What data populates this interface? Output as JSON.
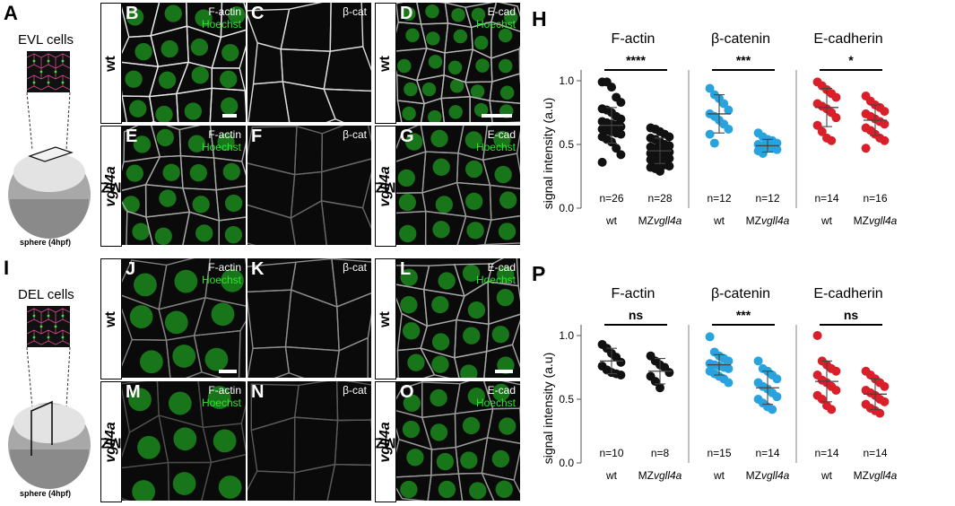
{
  "schematics": [
    {
      "letter": "A",
      "title": "EVL cells",
      "caption": "sphere (4hpf)"
    },
    {
      "letter": "I",
      "title": "DEL cells",
      "caption": "sphere (4hpf)"
    }
  ],
  "row_labels": {
    "wt": "wt",
    "mutant_prefix": "MZ",
    "mutant_gene": "vgll4a"
  },
  "image_panels": [
    {
      "letter": "B",
      "ch1": "F-actin",
      "ch2": "Hoechst"
    },
    {
      "letter": "C",
      "ch1": "β-cat",
      "ch2": ""
    },
    {
      "letter": "D",
      "ch1": "E-cad",
      "ch2": "Hoechst"
    },
    {
      "letter": "E",
      "ch1": "F-actin",
      "ch2": "Hoechst"
    },
    {
      "letter": "F",
      "ch1": "β-cat",
      "ch2": ""
    },
    {
      "letter": "G",
      "ch1": "E-cad",
      "ch2": "Hoechst"
    },
    {
      "letter": "J",
      "ch1": "F-actin",
      "ch2": "Hoechst"
    },
    {
      "letter": "K",
      "ch1": "β-cat",
      "ch2": ""
    },
    {
      "letter": "L",
      "ch1": "E-cad",
      "ch2": "Hoechst"
    },
    {
      "letter": "M",
      "ch1": "F-actin",
      "ch2": "Hoechst"
    },
    {
      "letter": "N",
      "ch1": "β-cat",
      "ch2": ""
    },
    {
      "letter": "O",
      "ch1": "E-cad",
      "ch2": "Hoechst"
    }
  ],
  "colors": {
    "black_series": "#111111",
    "blue_series": "#29a3dd",
    "red_series": "#d9202a",
    "nuclei": "#1f9a1f"
  },
  "chart_data": [
    {
      "panel": "H",
      "type": "scatter",
      "ylabel": "signal intensity (a.u)",
      "ylim": [
        0,
        1.0
      ],
      "yticks": [
        "0.0",
        "0.5",
        "1.0"
      ],
      "groups": [
        {
          "title": "F-actin",
          "significance": "****",
          "color": "black",
          "conditions": [
            {
              "label": "wt",
              "n": "n=26",
              "mean": 0.65,
              "sd": 0.14,
              "values": [
                0.99,
                0.99,
                0.95,
                0.87,
                0.83,
                0.78,
                0.77,
                0.75,
                0.72,
                0.7,
                0.68,
                0.67,
                0.66,
                0.65,
                0.64,
                0.62,
                0.61,
                0.6,
                0.59,
                0.58,
                0.56,
                0.54,
                0.52,
                0.47,
                0.42,
                0.36
              ]
            },
            {
              "label": "MZvgll4a",
              "n": "n=28",
              "mean": 0.45,
              "sd": 0.1,
              "values": [
                0.63,
                0.62,
                0.6,
                0.58,
                0.56,
                0.55,
                0.54,
                0.52,
                0.5,
                0.49,
                0.48,
                0.47,
                0.46,
                0.45,
                0.44,
                0.43,
                0.42,
                0.41,
                0.4,
                0.39,
                0.38,
                0.37,
                0.35,
                0.34,
                0.33,
                0.32,
                0.31,
                0.29
              ]
            }
          ]
        },
        {
          "title": "β-catenin",
          "significance": "***",
          "color": "blue",
          "conditions": [
            {
              "label": "wt",
              "n": "n=12",
              "mean": 0.74,
              "sd": 0.15,
              "values": [
                0.94,
                0.89,
                0.86,
                0.82,
                0.77,
                0.74,
                0.72,
                0.69,
                0.66,
                0.62,
                0.58,
                0.51
              ]
            },
            {
              "label": "MZvgll4a",
              "n": "n=12",
              "mean": 0.49,
              "sd": 0.05,
              "values": [
                0.59,
                0.56,
                0.54,
                0.53,
                0.51,
                0.5,
                0.49,
                0.48,
                0.47,
                0.46,
                0.45,
                0.43
              ]
            }
          ]
        },
        {
          "title": "E-cadherin",
          "significance": "*",
          "color": "red",
          "conditions": [
            {
              "label": "wt",
              "n": "n=14",
              "mean": 0.79,
              "sd": 0.15,
              "values": [
                0.99,
                0.96,
                0.93,
                0.9,
                0.87,
                0.82,
                0.8,
                0.78,
                0.75,
                0.71,
                0.65,
                0.6,
                0.55,
                0.53
              ]
            },
            {
              "label": "MZvgll4a",
              "n": "n=16",
              "mean": 0.69,
              "sd": 0.12,
              "values": [
                0.88,
                0.84,
                0.81,
                0.79,
                0.76,
                0.74,
                0.72,
                0.7,
                0.68,
                0.66,
                0.63,
                0.61,
                0.58,
                0.55,
                0.53,
                0.47
              ]
            }
          ]
        }
      ]
    },
    {
      "panel": "P",
      "type": "scatter",
      "ylabel": "signal intensity (a.u)",
      "ylim": [
        0,
        1.0
      ],
      "yticks": [
        "0.0",
        "0.5",
        "1.0"
      ],
      "groups": [
        {
          "title": "F-actin",
          "significance": "ns",
          "color": "black",
          "conditions": [
            {
              "label": "wt",
              "n": "n=10",
              "mean": 0.8,
              "sd": 0.1,
              "values": [
                0.93,
                0.9,
                0.86,
                0.83,
                0.79,
                0.76,
                0.73,
                0.71,
                0.7,
                0.69
              ]
            },
            {
              "label": "MZvgll4a",
              "n": "n=8",
              "mean": 0.72,
              "sd": 0.1,
              "values": [
                0.84,
                0.8,
                0.77,
                0.75,
                0.71,
                0.68,
                0.64,
                0.59
              ]
            }
          ]
        },
        {
          "title": "β-catenin",
          "significance": "***",
          "color": "blue",
          "conditions": [
            {
              "label": "wt",
              "n": "n=15",
              "mean": 0.77,
              "sd": 0.08,
              "values": [
                0.99,
                0.87,
                0.84,
                0.82,
                0.8,
                0.78,
                0.77,
                0.76,
                0.75,
                0.74,
                0.72,
                0.7,
                0.68,
                0.66,
                0.63
              ]
            },
            {
              "label": "MZvgll4a",
              "n": "n=14",
              "mean": 0.59,
              "sd": 0.13,
              "values": [
                0.8,
                0.74,
                0.72,
                0.69,
                0.66,
                0.63,
                0.6,
                0.58,
                0.55,
                0.52,
                0.5,
                0.47,
                0.44,
                0.42
              ]
            }
          ]
        },
        {
          "title": "E-cadherin",
          "significance": "ns",
          "color": "red",
          "conditions": [
            {
              "label": "wt",
              "n": "n=14",
              "mean": 0.64,
              "sd": 0.16,
              "values": [
                1.0,
                0.8,
                0.77,
                0.74,
                0.72,
                0.69,
                0.65,
                0.63,
                0.6,
                0.57,
                0.53,
                0.5,
                0.45,
                0.42
              ]
            },
            {
              "label": "MZvgll4a",
              "n": "n=14",
              "mean": 0.54,
              "sd": 0.12,
              "values": [
                0.72,
                0.69,
                0.66,
                0.63,
                0.6,
                0.57,
                0.55,
                0.53,
                0.5,
                0.48,
                0.46,
                0.43,
                0.41,
                0.39
              ]
            }
          ]
        }
      ]
    }
  ]
}
